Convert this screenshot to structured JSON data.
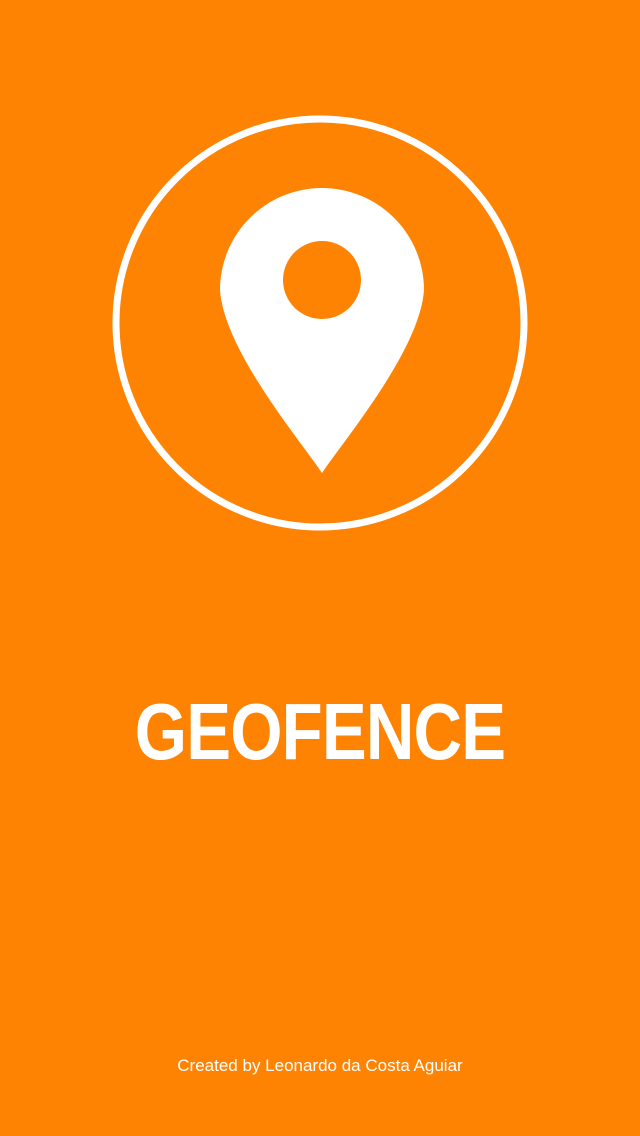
{
  "splash": {
    "title": "GEOFENCE",
    "credit": "Created by Leonardo da Costa Aguiar",
    "logo_icon": "map-pin-icon",
    "ring_icon": "circle-ring-icon"
  },
  "colors": {
    "background": "#FF8303",
    "foreground": "#FFFFFF"
  }
}
